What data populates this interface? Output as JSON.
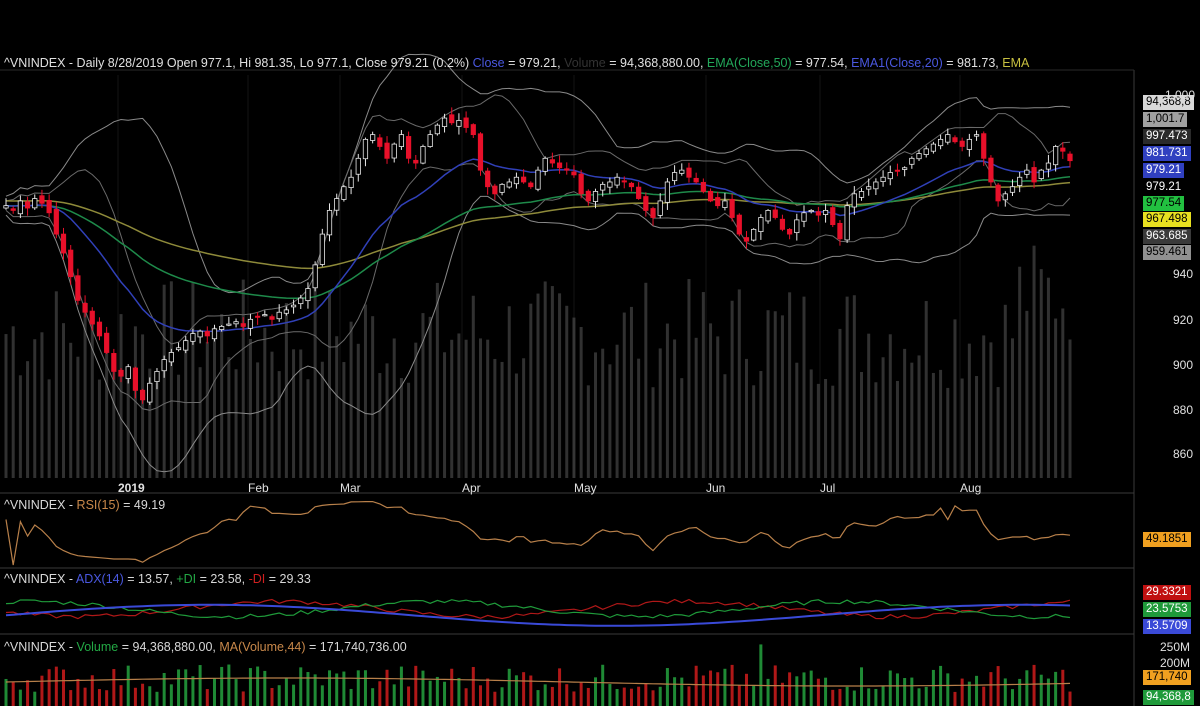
{
  "colors": {
    "background": "#000000",
    "up_candle": "#e8e8e8",
    "down_candle": "#e8102a",
    "ema50": "#1e8a4a",
    "ema20": "#3040b8",
    "ema_slow": "#8e8a3a",
    "bands": "#8a8a8a",
    "rsi": "#b8804a",
    "adx": "#3a4ad8",
    "plus_di": "#1f9a3a",
    "minus_di": "#b01818",
    "volume_bars": "#5a5a5a",
    "vol_ma": "#b8804a"
  },
  "panels": {
    "price": {
      "prefix": "^VNINDEX",
      "info": " - Daily 8/28/2019 Open 977.1, Hi 981.35, Lo 977.1, Close 979.21 (0.2%) ",
      "close_label": "Close",
      "close_value": " = 979.21, ",
      "volume_label": "Volume",
      "volume_value": " = 94,368,880.00, ",
      "ema50_label": "EMA(Close,50)",
      "ema50_value": " = 977.54, ",
      "ema20_label": "EMA1(Close,20)",
      "ema20_value": " = 981.73, ",
      "ema_slow_label": "EMA"
    },
    "rsi": {
      "prefix": "^VNINDEX - ",
      "label": "RSI(15)",
      "value": " = 49.19",
      "tag": "49.1851"
    },
    "adx": {
      "prefix": "^VNINDEX - ",
      "adx_label": "ADX(14)",
      "adx_value": " = 13.57, ",
      "plus_label": "+DI",
      "plus_value": " = 23.58, ",
      "minus_label": "-DI",
      "minus_value": " = 29.33",
      "tags": [
        "29.3321",
        "23.5753",
        "13.5709"
      ]
    },
    "volume": {
      "prefix": "^VNINDEX - ",
      "label": "Volume",
      "value": " = 94,368,880.00, ",
      "ma_label": "MA(Volume,44)",
      "ma_value": " = 171,740,736.00",
      "tags": [
        "250M",
        "200M",
        "171,740",
        "94,368,8"
      ]
    }
  },
  "price_tags": [
    "94,368,8",
    "1,001.7",
    "997.473",
    "981.731",
    "979.21",
    "979.21",
    "977.54",
    "967.498",
    "963.685",
    "959.461"
  ],
  "y_axis_labels": [
    "1,000",
    "940",
    "920",
    "900",
    "880",
    "860"
  ],
  "months": [
    "2019",
    "Feb",
    "Mar",
    "Apr",
    "May",
    "Jun",
    "Jul",
    "Aug"
  ],
  "chart_data": {
    "type": "line",
    "title": "^VNINDEX - Daily 8/28/2019",
    "ylim": [
      845,
      1008
    ],
    "y_ticks": [
      860,
      880,
      900,
      920,
      940
    ],
    "x_months": [
      "2019",
      "Feb",
      "Mar",
      "Apr",
      "May",
      "Jun",
      "Jul",
      "Aug"
    ],
    "close_series": [
      960,
      958,
      962,
      959,
      963,
      961,
      957,
      948,
      940,
      930,
      920,
      915,
      910,
      905,
      898,
      890,
      888,
      892,
      882,
      878,
      885,
      890,
      895,
      898,
      900,
      903,
      906,
      907,
      905,
      908,
      909,
      910,
      911,
      909,
      912,
      913,
      914,
      912,
      915,
      916,
      918,
      921,
      925,
      935,
      948,
      958,
      963,
      968,
      972,
      980,
      988,
      990,
      985,
      980,
      986,
      990,
      980,
      978,
      985,
      990,
      994,
      997,
      995,
      996,
      993,
      990,
      975,
      968,
      965,
      969,
      970,
      972,
      970,
      968,
      975,
      980,
      978,
      976,
      975,
      973,
      965,
      962,
      966,
      969,
      970,
      972,
      970,
      968,
      963,
      958,
      955,
      962,
      970,
      974,
      975,
      972,
      970,
      966,
      962,
      960,
      962,
      955,
      948,
      945,
      950,
      955,
      958,
      955,
      950,
      948,
      954,
      957,
      958,
      956,
      958,
      952,
      946,
      960,
      965,
      966,
      968,
      970,
      972,
      974,
      975,
      976,
      980,
      982,
      984,
      986,
      988,
      990,
      987,
      985,
      988,
      990,
      980,
      970,
      962,
      965,
      968,
      972,
      975,
      970,
      975,
      978,
      985,
      983,
      979
    ],
    "ema50_last": 977.54,
    "ema20_last": 981.73,
    "close_last": 979.21,
    "open": 977.1,
    "high": 981.35,
    "low": 977.1,
    "change_pct": 0.2,
    "volume_last": 94368880,
    "volume_ma44_last": 171740736,
    "rsi15_last": 49.19,
    "adx14_last": 13.57,
    "plus_di_last": 23.58,
    "minus_di_last": 29.33
  }
}
